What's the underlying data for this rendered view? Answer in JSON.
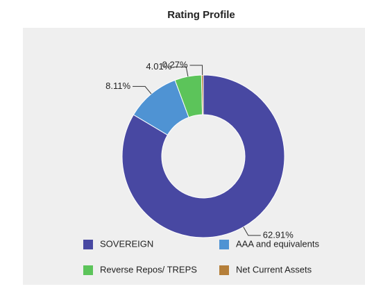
{
  "chart_data": {
    "type": "donut",
    "title": "Rating Profile",
    "categories": [
      "SOVEREIGN",
      "AAA and equivalents",
      "Reverse Repos/ TREPS",
      "Net Current Assets"
    ],
    "values": [
      62.91,
      8.11,
      4.01,
      0.27
    ],
    "value_labels": [
      "62.91%",
      "8.11%",
      "4.01%",
      "0.27%"
    ],
    "colors": [
      "#4848a2",
      "#4f93d3",
      "#5cc45a",
      "#b57f3a"
    ]
  }
}
